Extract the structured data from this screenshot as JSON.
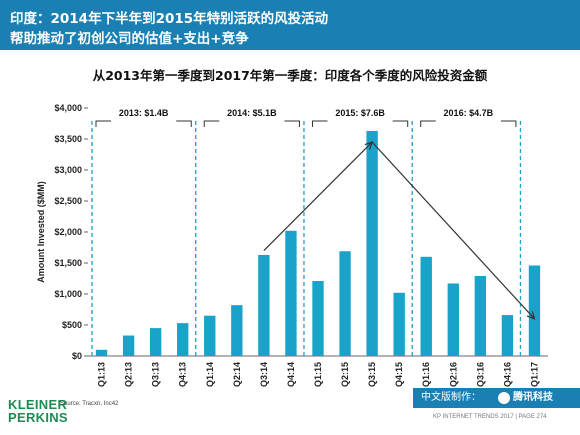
{
  "header": {
    "line1": "印度：2014年下半年到2015年特别活跃的风投活动",
    "line2": "帮助推动了初创公司的估值+支出+竞争"
  },
  "chart_data": {
    "type": "bar",
    "title": "从2013年第一季度到2017年第一季度：印度各个季度的风险投资金额",
    "xlabel": "",
    "ylabel": "Amount Invested ($MM)",
    "ylim": [
      0,
      4000
    ],
    "yticks": [
      0,
      500,
      1000,
      1500,
      2000,
      2500,
      3000,
      3500,
      4000
    ],
    "ytick_labels": [
      "$0",
      "$500",
      "$1,000",
      "$1,500",
      "$2,000",
      "$2,500",
      "$3,000",
      "$3,500",
      "$4,000"
    ],
    "categories": [
      "Q1:13",
      "Q2:13",
      "Q3:13",
      "Q4:13",
      "Q1:14",
      "Q2:14",
      "Q3:14",
      "Q4:14",
      "Q1:15",
      "Q2:15",
      "Q3:15",
      "Q4:15",
      "Q1:16",
      "Q2:16",
      "Q3:16",
      "Q4:16",
      "Q1:17"
    ],
    "values": [
      100,
      330,
      450,
      530,
      650,
      820,
      1630,
      2020,
      1210,
      1690,
      3630,
      1020,
      1600,
      1170,
      1290,
      660,
      1460
    ],
    "bar_color": "#1aa3c9",
    "grid": false,
    "year_groups": [
      {
        "label": "2013: $1.4B",
        "start": 0,
        "end": 3
      },
      {
        "label": "2014: $5.1B",
        "start": 4,
        "end": 7
      },
      {
        "label": "2015: $7.6B",
        "start": 8,
        "end": 11
      },
      {
        "label": "2016: $4.7B",
        "start": 12,
        "end": 15
      }
    ],
    "trend_arrows": [
      {
        "from": {
          "x": "Q3:14",
          "y": 1700
        },
        "to": {
          "x": "Q3:15",
          "y": 3450
        }
      },
      {
        "from": {
          "x": "Q3:15",
          "y": 3450
        },
        "to": {
          "x": "Q1:17",
          "y": 600
        }
      }
    ]
  },
  "footer": {
    "source": "Source: Tracxn, Inc42",
    "logo_line1": "KLEINER",
    "logo_line2": "PERKINS",
    "made_by": "中文版制作：",
    "brand": "腾讯科技",
    "note": "KP INTERNET TRENDS 2017  |  PAGE 274"
  }
}
